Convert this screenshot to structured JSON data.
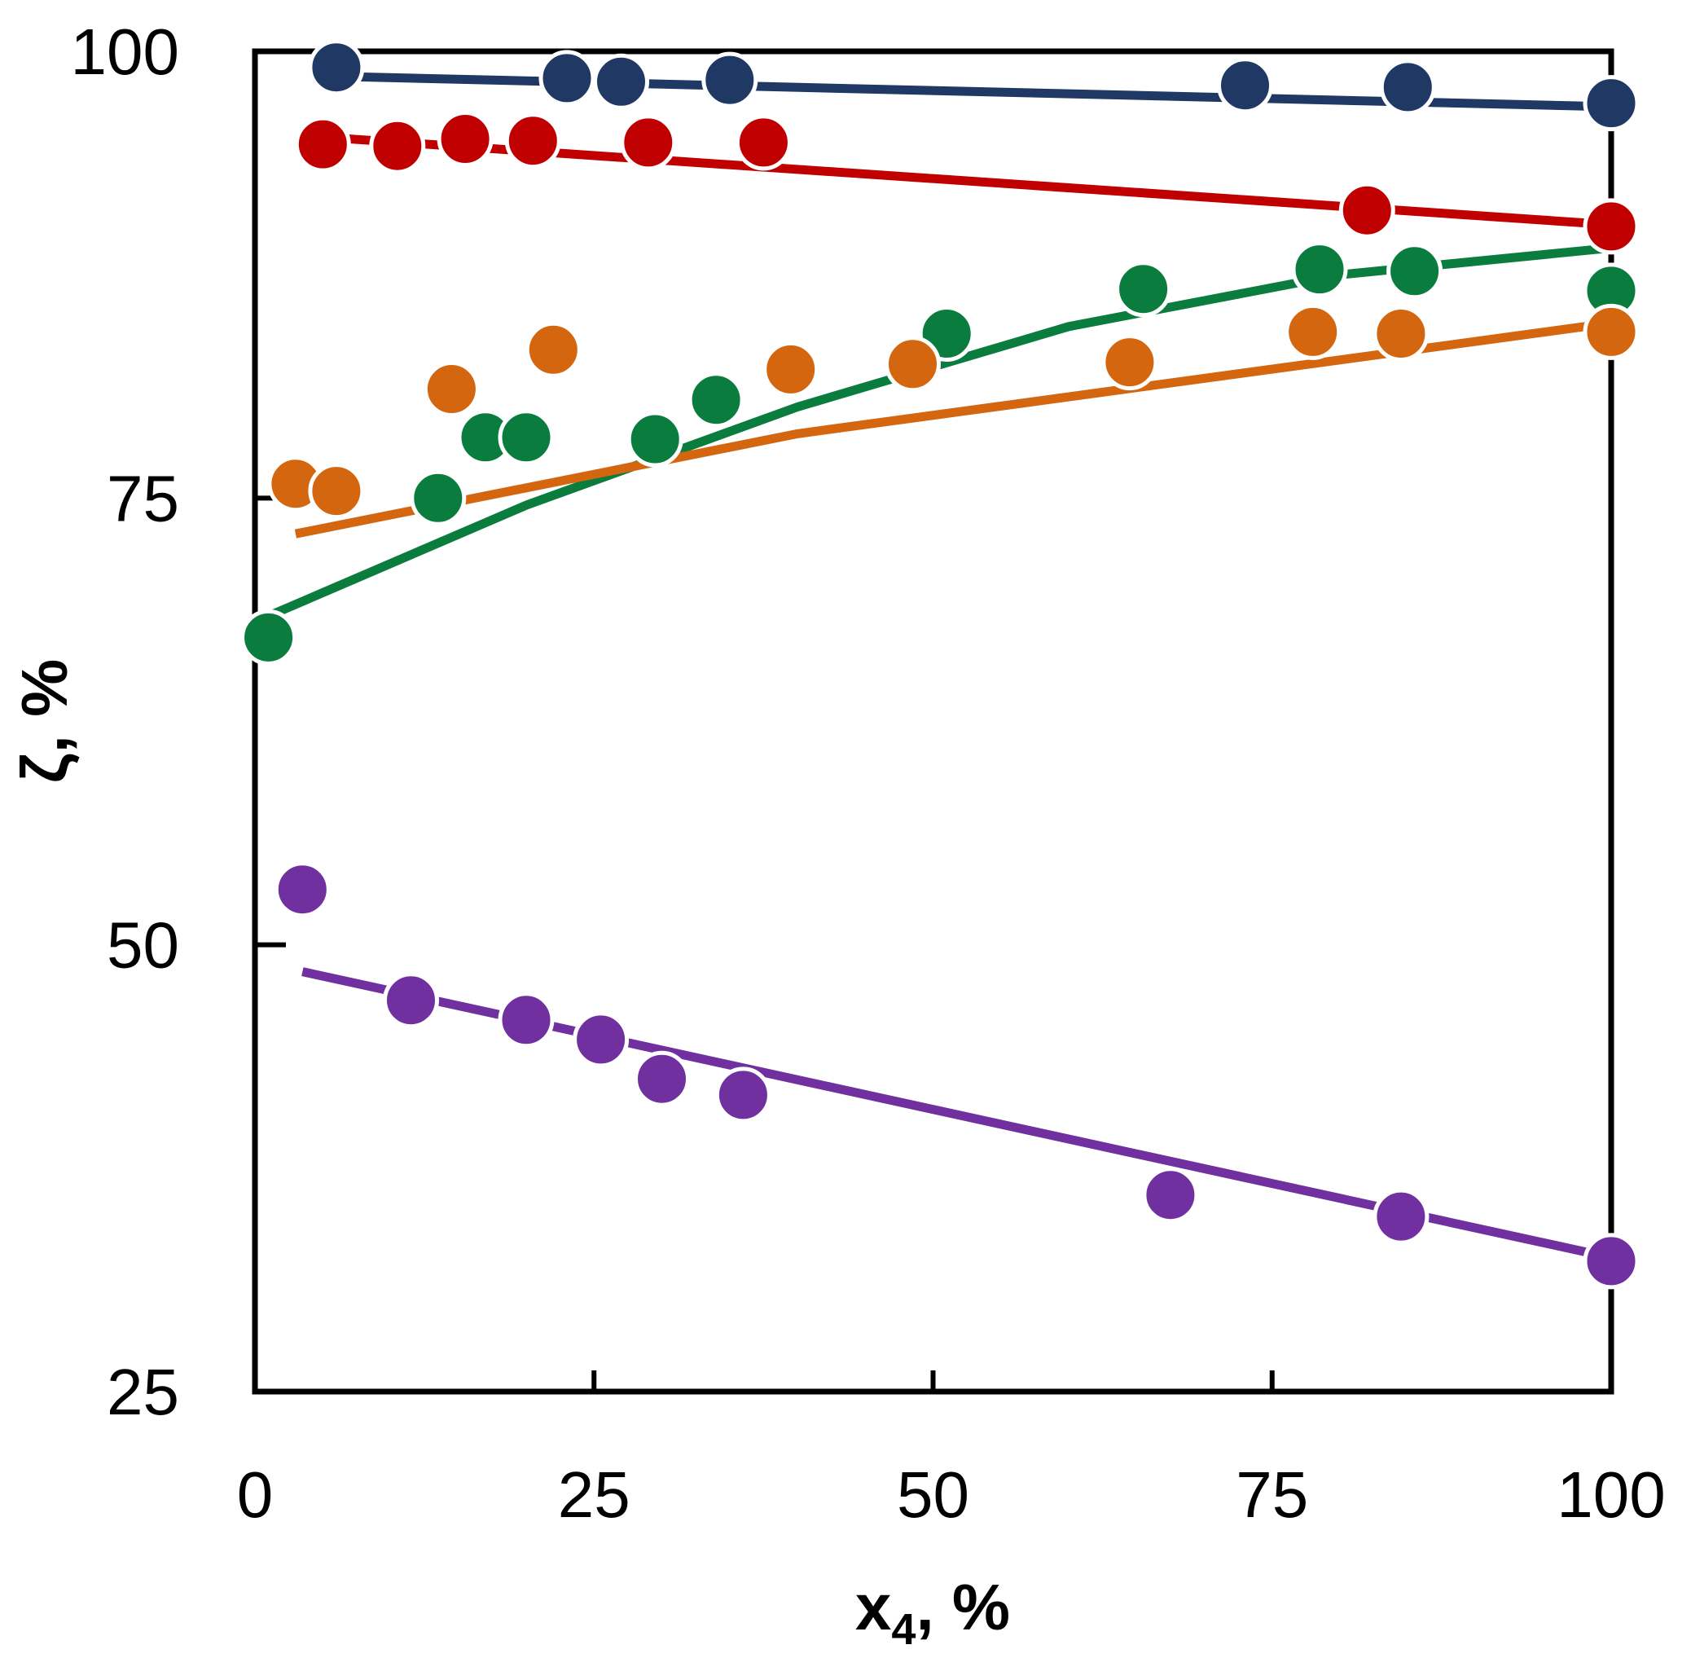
{
  "chart_data": {
    "type": "scatter",
    "title": "",
    "xlabel": {
      "main": "x",
      "sub": "4",
      "suffix": ", %"
    },
    "ylabel": "ζ, %",
    "xlim": [
      0,
      100
    ],
    "ylim": [
      25,
      100
    ],
    "xticks": [
      0,
      25,
      50,
      75,
      100
    ],
    "yticks": [
      25,
      50,
      75,
      100
    ],
    "legend": "none",
    "grid": false,
    "series": [
      {
        "name": "navy",
        "color": "#1f3864",
        "points": [
          [
            6,
            99.1
          ],
          [
            23,
            98.5
          ],
          [
            27,
            98.3
          ],
          [
            35,
            98.4
          ],
          [
            73,
            98.1
          ],
          [
            85,
            98.0
          ],
          [
            100,
            97.1
          ]
        ],
        "fit": [
          [
            6,
            98.6
          ],
          [
            100,
            96.9
          ]
        ]
      },
      {
        "name": "red",
        "color": "#c00000",
        "points": [
          [
            5,
            94.8
          ],
          [
            10.5,
            94.7
          ],
          [
            15.5,
            95.1
          ],
          [
            20.5,
            95.0
          ],
          [
            29,
            94.9
          ],
          [
            37.5,
            94.9
          ],
          [
            82,
            91.1
          ],
          [
            100,
            90.2
          ]
        ],
        "fit": [
          [
            5,
            95.2
          ],
          [
            100,
            90.3
          ]
        ]
      },
      {
        "name": "green",
        "color": "#0a7d3e",
        "points": [
          [
            1,
            67.2
          ],
          [
            13.5,
            75.0
          ],
          [
            17,
            78.4
          ],
          [
            20,
            78.4
          ],
          [
            29.5,
            78.3
          ],
          [
            34,
            80.5
          ],
          [
            51,
            84.2
          ],
          [
            65.5,
            86.7
          ],
          [
            78.5,
            87.8
          ],
          [
            85.5,
            87.7
          ],
          [
            100,
            86.6
          ]
        ],
        "fit": [
          [
            1,
            68.4
          ],
          [
            20,
            74.6
          ],
          [
            40,
            80.1
          ],
          [
            60,
            84.6
          ],
          [
            80,
            87.5
          ],
          [
            100,
            89.0
          ]
        ]
      },
      {
        "name": "orange",
        "color": "#d4660f",
        "points": [
          [
            3,
            75.8
          ],
          [
            6,
            75.4
          ],
          [
            14.5,
            81.1
          ],
          [
            22,
            83.3
          ],
          [
            39.5,
            82.2
          ],
          [
            48.5,
            82.5
          ],
          [
            64.5,
            82.6
          ],
          [
            78,
            84.3
          ],
          [
            84.5,
            84.2
          ],
          [
            100,
            84.3
          ]
        ],
        "fit": [
          [
            3,
            73.0
          ],
          [
            40,
            78.6
          ],
          [
            100,
            84.8
          ]
        ]
      },
      {
        "name": "purple",
        "color": "#7030a0",
        "points": [
          [
            3.5,
            53.1
          ],
          [
            11.5,
            46.9
          ],
          [
            20,
            45.8
          ],
          [
            25.5,
            44.7
          ],
          [
            30,
            42.5
          ],
          [
            36,
            41.6
          ],
          [
            67.5,
            36.0
          ],
          [
            84.5,
            34.8
          ],
          [
            100,
            32.3
          ]
        ],
        "fit": [
          [
            3.5,
            48.5
          ],
          [
            100,
            32.5
          ]
        ]
      }
    ]
  }
}
